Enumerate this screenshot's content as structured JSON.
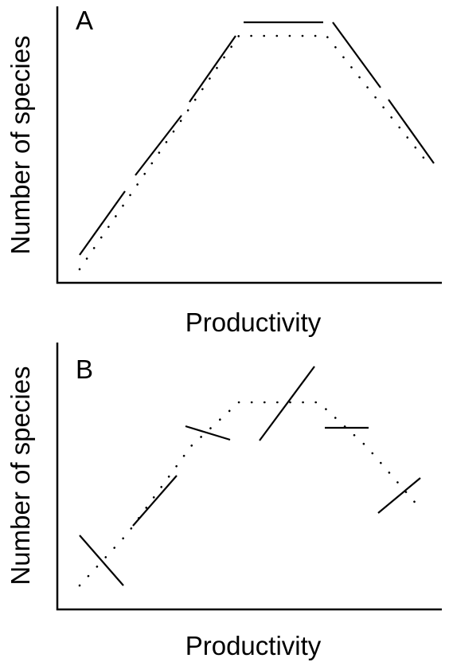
{
  "panels": [
    {
      "label": "A",
      "y_label": "Number of species",
      "x_label": "Productivity"
    },
    {
      "label": "B",
      "y_label": "Number of species",
      "x_label": "Productivity"
    }
  ]
}
